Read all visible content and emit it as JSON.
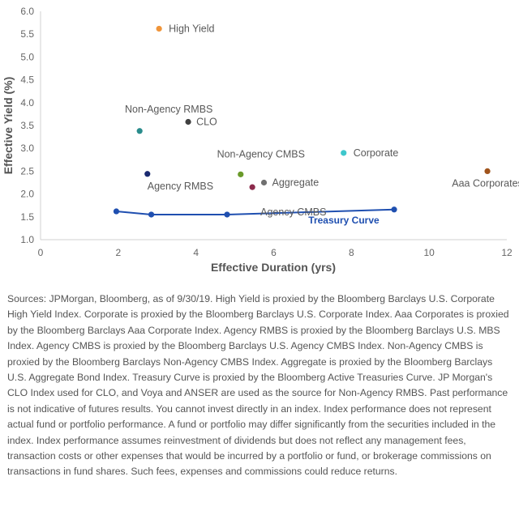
{
  "chart_data": {
    "type": "scatter",
    "title": "",
    "xlabel": "Effective Duration (yrs)",
    "ylabel": "Effective Yield (%)",
    "xlim": [
      0,
      12
    ],
    "ylim": [
      1.0,
      6.0
    ],
    "x_ticks": [
      "0",
      "2",
      "4",
      "6",
      "8",
      "10",
      "12"
    ],
    "y_ticks": [
      "1.0",
      "1.5",
      "2.0",
      "2.5",
      "3.0",
      "3.5",
      "4.0",
      "4.5",
      "5.0",
      "5.5",
      "6.0"
    ],
    "grid": false,
    "points": [
      {
        "label": "High Yield",
        "x": 3.05,
        "y": 5.62,
        "color": "#f0953a"
      },
      {
        "label": "Non-Agency  RMBS",
        "x": 2.55,
        "y": 3.38,
        "color": "#2a8c8c"
      },
      {
        "label": "CLO",
        "x": 3.8,
        "y": 3.58,
        "color": "#404040"
      },
      {
        "label": "Non-Agency  CMBS",
        "x": 5.15,
        "y": 2.43,
        "color": "#6a9a2a"
      },
      {
        "label": "Corporate",
        "x": 7.8,
        "y": 2.9,
        "color": "#3ec7cc"
      },
      {
        "label": "Aaa Corporates",
        "x": 11.5,
        "y": 2.5,
        "color": "#a0541c"
      },
      {
        "label": "Agency  RMBS",
        "x": 2.75,
        "y": 2.44,
        "color": "#1a2a70"
      },
      {
        "label": "Aggregate",
        "x": 5.75,
        "y": 2.25,
        "color": "#707070"
      },
      {
        "label": "Agency CMBS",
        "x": 5.45,
        "y": 2.15,
        "color": "#8c2a4c"
      }
    ],
    "treasury_curve": {
      "label": "Treasury Curve",
      "color": "#1f4fb0",
      "x": [
        1.95,
        2.85,
        4.8,
        9.1
      ],
      "y": [
        1.62,
        1.55,
        1.55,
        1.66
      ]
    }
  },
  "footnote": "Sources: JPMorgan, Bloomberg, as of 9/30/19. High Yield is proxied by the Bloomberg Barclays U.S. Corporate High Yield Index. Corporate is proxied by the Bloomberg Barclays U.S. Corporate Index. Aaa Corporates is proxied by the Bloomberg Barclays Aaa Corporate Index. Agency RMBS is proxied by the Bloomberg Barclays U.S. MBS Index. Agency CMBS is proxied by the Bloomberg Barclays U.S. Agency CMBS Index. Non-Agency CMBS is proxied by the Bloomberg Barclays Non-Agency CMBS Index. Aggregate is proxied by the Bloomberg Barclays U.S. Aggregate Bond Index. Treasury Curve is proxied by the Bloomberg Active Treasuries Curve. JP Morgan's CLO Index used for CLO, and Voya and ANSER are used as the source for Non-Agency RMBS. Past performance is not indicative of futures results. You cannot invest directly in an index. Index performance does not represent actual fund or portfolio performance. A fund or portfolio may differ significantly from the securities included in the index. Index performance assumes reinvestment of dividends but does not reflect any management fees, transaction costs or other expenses that would be incurred by a portfolio or fund, or brokerage commissions on transactions in fund shares. Such fees, expenses and commissions could reduce returns."
}
